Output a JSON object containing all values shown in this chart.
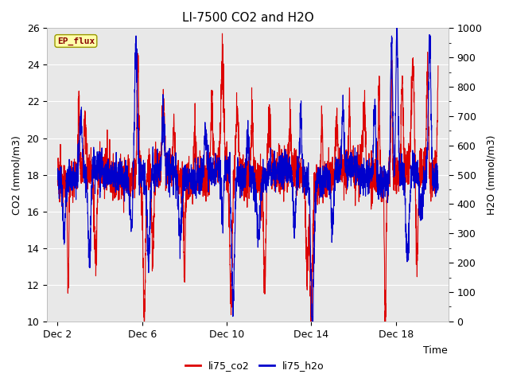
{
  "title": "LI-7500 CO2 and H2O",
  "xlabel": "Time",
  "ylabel_left": "CO2 (mmol/m3)",
  "ylabel_right": "H2O (mmol/m3)",
  "annotation": "EP_flux",
  "ylim_left": [
    10,
    26
  ],
  "ylim_right": [
    0,
    1000
  ],
  "yticks_left": [
    10,
    12,
    14,
    16,
    18,
    20,
    22,
    24,
    26
  ],
  "yticks_right": [
    0,
    100,
    200,
    300,
    400,
    500,
    600,
    700,
    800,
    900,
    1000
  ],
  "xtick_labels": [
    "Dec 2",
    "Dec 6",
    "Dec 10",
    "Dec 14",
    "Dec 18"
  ],
  "xtick_positions": [
    2,
    6,
    10,
    14,
    18
  ],
  "xlim": [
    1.5,
    20.5
  ],
  "co2_color": "#dd0000",
  "h2o_color": "#0000cc",
  "co2_linewidth": 0.8,
  "h2o_linewidth": 0.8,
  "plot_bg_color": "#e8e8e8",
  "legend_co2": "li75_co2",
  "legend_h2o": "li75_h2o",
  "annotation_bg": "#ffffaa",
  "annotation_color": "#880000",
  "figsize": [
    6.4,
    4.8
  ],
  "dpi": 100
}
